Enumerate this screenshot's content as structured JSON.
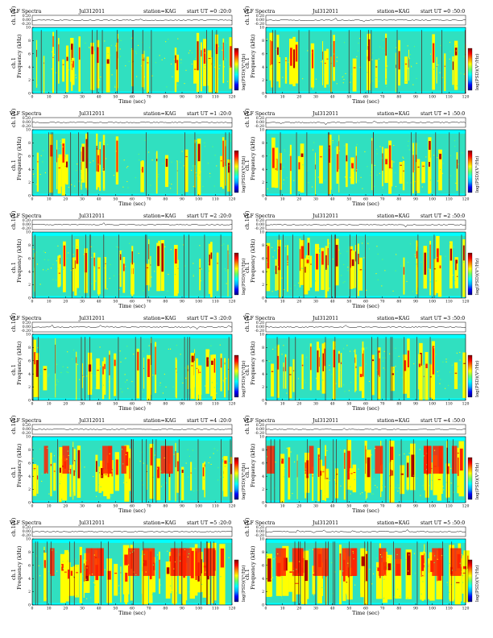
{
  "page": {
    "panels": [
      {
        "title": "VLF Spectra",
        "date": "Jul312011",
        "station": "station=KAG",
        "start": "start UT =0 :20:0",
        "panel_label": "ch.1",
        "activity": 0.35
      },
      {
        "title": "VLF Spectra",
        "date": "Jul312011",
        "station": "station=KAG",
        "start": "start UT =0 :50:0",
        "panel_label": "ch.1",
        "activity": 0.35
      },
      {
        "title": "VLF Spectra",
        "date": "Jul312011",
        "station": "station=KAG",
        "start": "start UT =1 :20:0",
        "panel_label": "ch.1",
        "activity": 0.25
      },
      {
        "title": "VLF Spectra",
        "date": "Jul312011",
        "station": "station=KAG",
        "start": "start UT =1 :50:0",
        "panel_label": "ch.1",
        "activity": 0.3
      },
      {
        "title": "VLF Spectra",
        "date": "Jul312011",
        "station": "station=KAG",
        "start": "start UT =2 :20:0",
        "panel_label": "ch.1",
        "activity": 0.4
      },
      {
        "title": "VLF Spectra",
        "date": "Jul312011",
        "station": "station=KAG",
        "start": "start UT =2 :50:0",
        "panel_label": "ch.1",
        "activity": 0.4
      },
      {
        "title": "VLF Spectra",
        "date": "Jul312011",
        "station": "station=KAG",
        "start": "start UT =3 :20:0",
        "panel_label": "ch.1",
        "activity": 0.4
      },
      {
        "title": "VLF Spectra",
        "date": "Jul312011",
        "station": "station=KAG",
        "start": "start UT =3 :50:0",
        "panel_label": "ch.1",
        "activity": 0.4
      },
      {
        "title": "VLF Spectra",
        "date": "Jul312011",
        "station": "station=KAG",
        "start": "start UT =4 :20:0",
        "panel_label": "ch.1",
        "activity": 0.55
      },
      {
        "title": "VLF Spectra",
        "date": "Jul312011",
        "station": "station=KAG",
        "start": "start UT =4 :50:0",
        "panel_label": "ch.1",
        "activity": 0.65
      },
      {
        "title": "VLF Spectra",
        "date": "Jul312011",
        "station": "station=KAG",
        "start": "start UT =5 :20:0",
        "panel_label": "ch.1",
        "activity": 0.9
      },
      {
        "title": "VLF Spectra",
        "date": "Jul312011",
        "station": "station=KAG",
        "start": "start UT =5 :50:0",
        "panel_label": "ch.1",
        "activity": 0.95
      }
    ]
  },
  "chart_data": {
    "type": "heatmap",
    "waveform": {
      "ylabel": "ch.1(V)",
      "ytick_labels": [
        "0.20",
        "0.00",
        "-0.20"
      ],
      "ylim": [
        -0.2,
        0.2
      ]
    },
    "spectrogram": {
      "ylabel": "Frequency (kHz)",
      "xlabel": "Time (sec)",
      "xlim": [
        0,
        120
      ],
      "ylim": [
        0,
        10
      ],
      "xtick_labels": [
        "0",
        "10",
        "20",
        "30",
        "40",
        "50",
        "60",
        "70",
        "80",
        "90",
        "100",
        "110",
        "120"
      ],
      "ytick_labels": [
        "0",
        "2",
        "4",
        "6",
        "8",
        "10"
      ]
    },
    "colorbar": {
      "label": "log(PSD)(V²/Hz)",
      "colors": [
        "#000080",
        "#0000ff",
        "#00aaff",
        "#00ffff",
        "#66ff66",
        "#ffff00",
        "#ff8800",
        "#ff0000",
        "#800000"
      ]
    },
    "palette": {
      "background": "#30e0c0",
      "low": "#00ffff",
      "mid": "#66ff66",
      "high": "#ffff00",
      "peak": "#ff2200",
      "saturated": "#b00000"
    }
  }
}
